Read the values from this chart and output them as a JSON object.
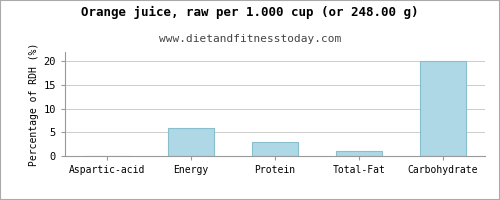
{
  "title": "Orange juice, raw per 1.000 cup (or 248.00 g)",
  "subtitle": "www.dietandfitnesstoday.com",
  "categories": [
    "Aspartic-acid",
    "Energy",
    "Protein",
    "Total-Fat",
    "Carbohydrate"
  ],
  "values": [
    0,
    6,
    3,
    1,
    20
  ],
  "bar_color": "#aed8e6",
  "bar_edge_color": "#88bece",
  "ylabel": "Percentage of RDH (%)",
  "ylim": [
    0,
    22
  ],
  "yticks": [
    0,
    5,
    10,
    15,
    20
  ],
  "background_color": "#ffffff",
  "plot_bg_color": "#ffffff",
  "title_fontsize": 9,
  "subtitle_fontsize": 8,
  "label_fontsize": 7,
  "tick_fontsize": 7.5,
  "ylabel_fontsize": 7,
  "grid_color": "#cccccc",
  "border_color": "#aaaaaa"
}
